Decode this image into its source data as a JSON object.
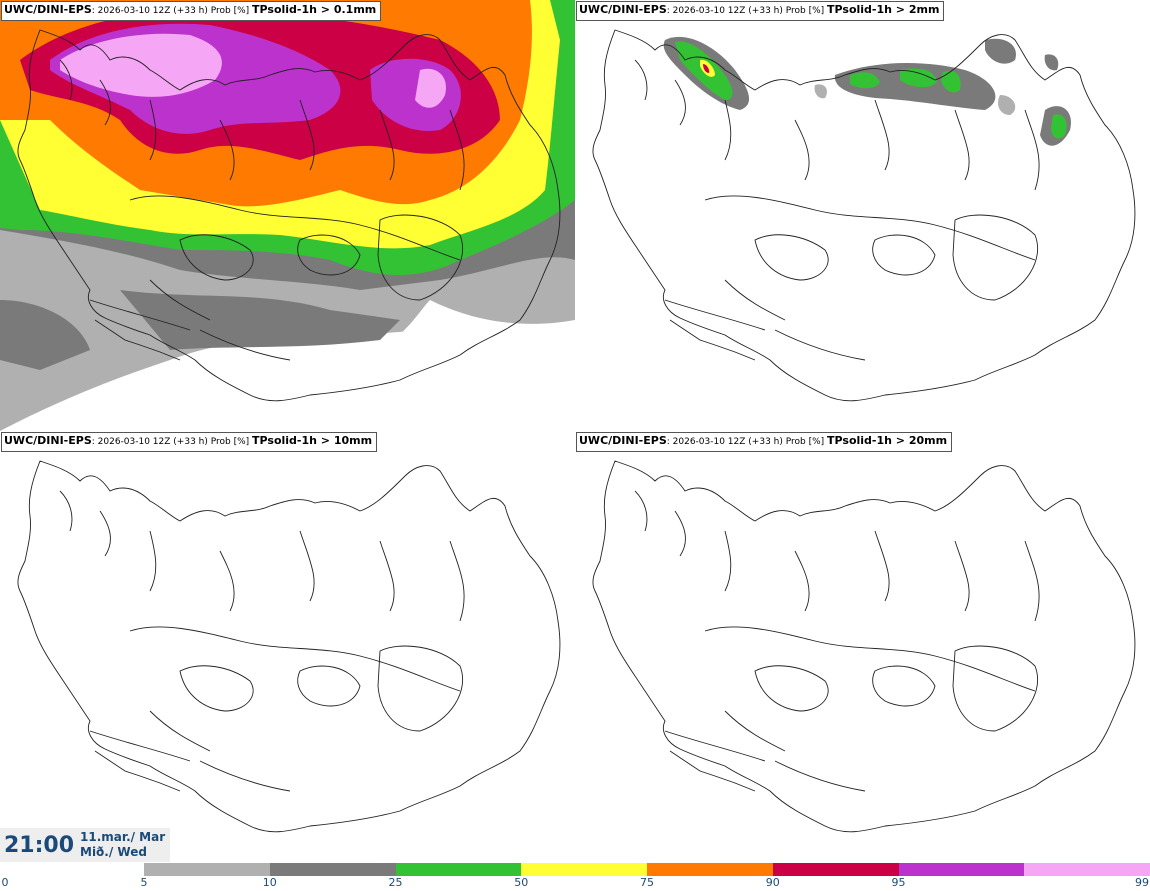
{
  "panels": [
    {
      "model": "UWC/DINI-EPS",
      "run": ": 2026-03-10 12Z (+33 h) Prob [%]",
      "param": "TPsolid-1h > 0.1mm",
      "level": "high"
    },
    {
      "model": "UWC/DINI-EPS",
      "run": ": 2026-03-10 12Z (+33 h) Prob [%]",
      "param": "TPsolid-1h > 2mm",
      "level": "low"
    },
    {
      "model": "UWC/DINI-EPS",
      "run": ": 2026-03-10 12Z (+33 h) Prob [%]",
      "param": "TPsolid-1h > 10mm",
      "level": "none"
    },
    {
      "model": "UWC/DINI-EPS",
      "run": ": 2026-03-10 12Z (+33 h) Prob [%]",
      "param": "TPsolid-1h > 20mm",
      "level": "none"
    }
  ],
  "valid_time": {
    "time": "21:00",
    "date_line1": "11.mar./ Mar",
    "date_line2": "Mið./ Wed"
  },
  "colorbar": {
    "ticks": [
      "0",
      "5",
      "10",
      "25",
      "50",
      "75",
      "90",
      "95",
      "99"
    ],
    "colors": [
      "#b0b0b0",
      "#7a7a7a",
      "#33c233",
      "#ffff33",
      "#ff7a00",
      "#cc0044",
      "#bb33cc",
      "#f5a6f5"
    ]
  }
}
